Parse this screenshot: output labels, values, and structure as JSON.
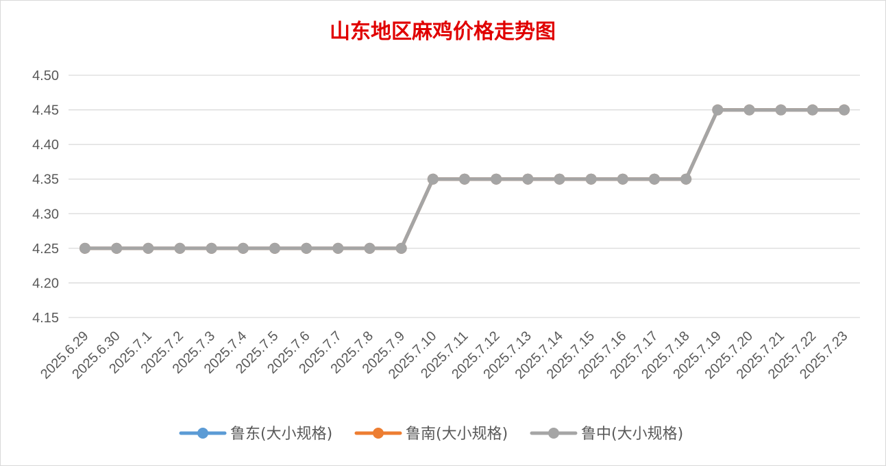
{
  "chart_data": {
    "type": "line",
    "title": "山东地区麻鸡价格走势图",
    "xlabel": "",
    "ylabel": "",
    "ylim": [
      4.15,
      4.5
    ],
    "yticks": [
      "4.50",
      "4.45",
      "4.40",
      "4.35",
      "4.30",
      "4.25",
      "4.20",
      "4.15"
    ],
    "grid": true,
    "legend_position": "bottom",
    "categories": [
      "2025.6.29",
      "2025.6.30",
      "2025.7.1",
      "2025.7.2",
      "2025.7.3",
      "2025.7.4",
      "2025.7.5",
      "2025.7.6",
      "2025.7.7",
      "2025.7.8",
      "2025.7.9",
      "2025.7.10",
      "2025.7.11",
      "2025.7.12",
      "2025.7.13",
      "2025.7.14",
      "2025.7.15",
      "2025.7.16",
      "2025.7.17",
      "2025.7.18",
      "2025.7.19",
      "2025.7.20",
      "2025.7.21",
      "2025.7.22",
      "2025.7.23"
    ],
    "series": [
      {
        "name": "鲁东(大小规格)",
        "color": "#5b9bd5",
        "values": [
          4.25,
          4.25,
          4.25,
          4.25,
          4.25,
          4.25,
          4.25,
          4.25,
          4.25,
          4.25,
          4.25,
          4.35,
          4.35,
          4.35,
          4.35,
          4.35,
          4.35,
          4.35,
          4.35,
          4.35,
          4.45,
          4.45,
          4.45,
          4.45,
          4.45
        ]
      },
      {
        "name": "鲁南(大小规格)",
        "color": "#ed7d31",
        "values": [
          4.25,
          4.25,
          4.25,
          4.25,
          4.25,
          4.25,
          4.25,
          4.25,
          4.25,
          4.25,
          4.25,
          4.35,
          4.35,
          4.35,
          4.35,
          4.35,
          4.35,
          4.35,
          4.35,
          4.35,
          4.45,
          4.45,
          4.45,
          4.45,
          4.45
        ]
      },
      {
        "name": "鲁中(大小规格)",
        "color": "#a5a5a5",
        "values": [
          4.25,
          4.25,
          4.25,
          4.25,
          4.25,
          4.25,
          4.25,
          4.25,
          4.25,
          4.25,
          4.25,
          4.35,
          4.35,
          4.35,
          4.35,
          4.35,
          4.35,
          4.35,
          4.35,
          4.35,
          4.45,
          4.45,
          4.45,
          4.45,
          4.45
        ]
      }
    ]
  }
}
